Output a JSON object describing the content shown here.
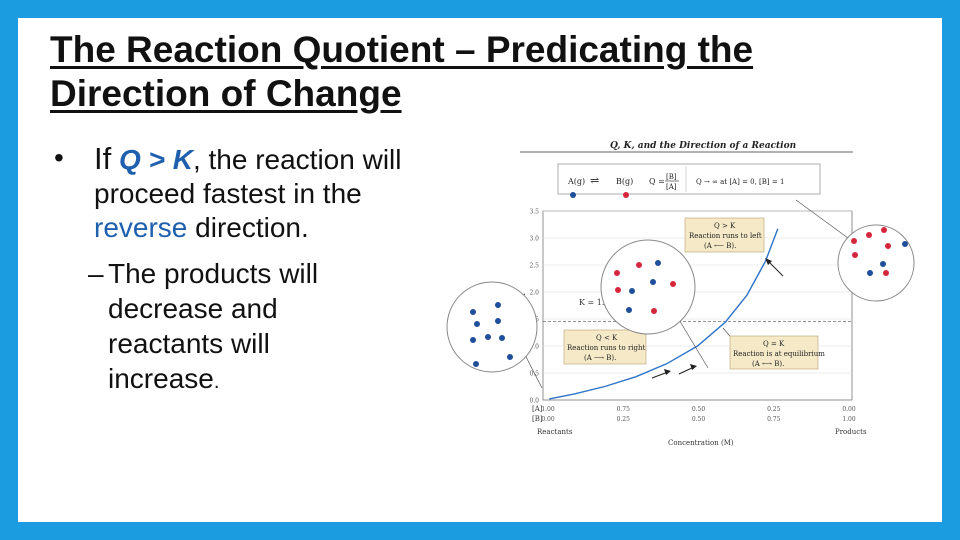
{
  "slide": {
    "title": "The Reaction Quotient – Predicating the Direction of Change",
    "bullet1": {
      "bullet": "•",
      "if_word": "If",
      "condition": "Q > K",
      "text_before_reverse": ", the reaction will proceed fastest in the",
      "reverse_word": "reverse",
      "text_after_reverse": "direction."
    },
    "bullet2": {
      "dash": "–",
      "text": "The products will decrease and reactants will increase",
      "period": "."
    }
  },
  "figure": {
    "title": "Q, K, and the Direction of a Reaction",
    "legend": {
      "species_a": "A(g)",
      "species_b": "B(g)",
      "q_label": "Q =",
      "q_numerator": "[B]",
      "q_denominator": "[A]",
      "q_limit": "Q → ∞ at [A] = 0, [B] = 1"
    },
    "y_axis_label": "Q or K",
    "x_axis_label": "Concentration (M)",
    "k_label": "K = 1.45",
    "left_end_label": "Reactants",
    "right_end_label": "Products",
    "row_a_label": "[A]",
    "row_b_label": "[B]",
    "callouts": {
      "q_gt_k": {
        "line1": "Q > K",
        "line2": "Reaction runs to left",
        "line3": "(A ⟵ B)."
      },
      "q_lt_k": {
        "line1": "Q < K",
        "line2": "Reaction runs to right",
        "line3": "(A ⟶ B)."
      },
      "q_eq_k": {
        "line1": "Q = K",
        "line2": "Reaction is at equilibrium",
        "line3": "(A ⟷ B)."
      }
    },
    "colors": {
      "species_a": "#1f4f9a",
      "species_b": "#d6263c",
      "curve": "#2e74c9",
      "callout_bg": "#f5e9c8"
    }
  },
  "chart_data": {
    "type": "line",
    "x_rows": {
      "A": [
        "1.00",
        "0.75",
        "0.50",
        "0.25",
        "0.00"
      ],
      "B": [
        "0.00",
        "0.25",
        "0.50",
        "0.75",
        "1.00"
      ]
    },
    "y_ticks": [
      "0.0",
      "0.5",
      "1.0",
      "1.5",
      "2.0",
      "2.5",
      "3.0",
      "3.5"
    ],
    "ylim": [
      0,
      3.5
    ],
    "series": [
      {
        "B": [
          0.02,
          0.1,
          0.2,
          0.3,
          0.4,
          0.5,
          0.59,
          0.66,
          0.72,
          0.76
        ],
        "Q": [
          0.02,
          0.11,
          0.25,
          0.43,
          0.67,
          1.0,
          1.44,
          1.94,
          2.57,
          3.17
        ]
      }
    ],
    "k_value": 1.45
  }
}
